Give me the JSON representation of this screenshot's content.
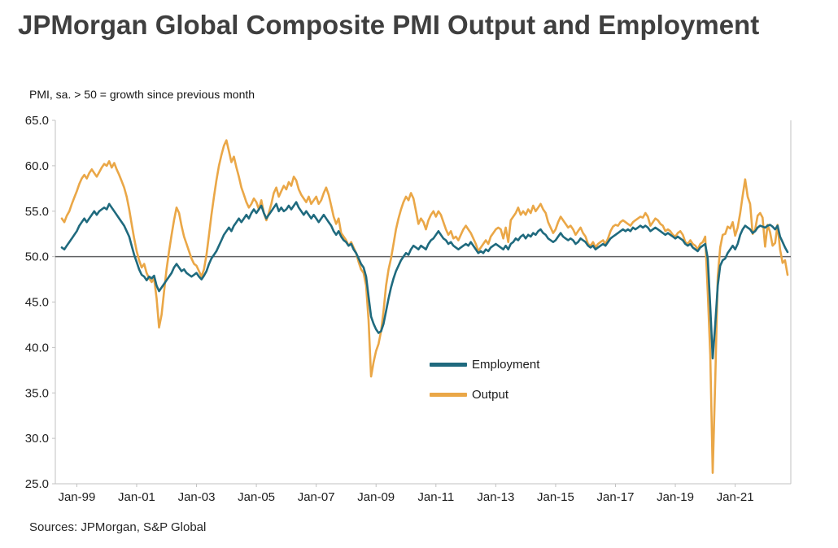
{
  "title": "JPMorgan Global Composite PMI Output and Employment",
  "axis_note": "PMI, sa. > 50 = growth since previous month",
  "source": "Sources: JPMorgan, S&P Global",
  "legend": {
    "employment": "Employment",
    "output": "Output"
  },
  "colors": {
    "employment": "#1f6a7e",
    "output": "#eaa747",
    "axis": "#c2c2c2",
    "fifty_line": "#5f6062",
    "text": "#1f1f1f"
  },
  "chart_data": {
    "type": "line",
    "title": "JPMorgan Global Composite PMI Output and Employment",
    "ylabel": "PMI, sa. > 50 = growth since previous month",
    "ylim": [
      25,
      65
    ],
    "y_ticks": [
      65,
      60,
      55,
      50,
      45,
      40,
      35,
      30,
      25
    ],
    "reference_line": 50,
    "grid": false,
    "legend_position": "inside-center",
    "x_frequency": "monthly",
    "x_start": "1998-07",
    "x_end": "2022-10",
    "x_tick_labels": [
      "Jan-99",
      "Jan-01",
      "Jan-03",
      "Jan-05",
      "Jan-07",
      "Jan-09",
      "Jan-11",
      "Jan-13",
      "Jan-15",
      "Jan-17",
      "Jan-19",
      "Jan-21"
    ],
    "x_tick_indices": [
      6,
      30,
      54,
      78,
      102,
      126,
      150,
      174,
      198,
      222,
      246,
      270
    ],
    "series": [
      {
        "name": "Employment",
        "color": "#1f6a7e",
        "values": [
          51.0,
          50.8,
          51.2,
          51.6,
          52.0,
          52.4,
          52.8,
          53.4,
          53.8,
          54.2,
          53.8,
          54.2,
          54.6,
          55.0,
          54.6,
          55.0,
          55.2,
          55.4,
          55.2,
          55.8,
          55.4,
          55.0,
          54.6,
          54.2,
          53.8,
          53.4,
          52.8,
          52.2,
          51.2,
          50.2,
          49.4,
          48.6,
          48.0,
          47.8,
          47.4,
          47.8,
          47.6,
          47.9,
          46.8,
          46.2,
          46.6,
          47.0,
          47.4,
          47.8,
          48.2,
          48.8,
          49.2,
          48.8,
          48.4,
          48.6,
          48.2,
          48.0,
          47.8,
          48.0,
          48.2,
          47.8,
          47.5,
          47.9,
          48.4,
          49.2,
          49.8,
          50.2,
          50.6,
          51.2,
          51.8,
          52.4,
          52.8,
          53.2,
          52.8,
          53.4,
          53.8,
          54.2,
          53.8,
          54.2,
          54.6,
          54.2,
          54.8,
          55.2,
          54.8,
          55.2,
          55.6,
          54.8,
          54.2,
          54.6,
          55.0,
          55.4,
          55.8,
          55.0,
          55.4,
          55.0,
          55.2,
          55.6,
          55.2,
          55.6,
          56.0,
          55.4,
          55.0,
          54.6,
          55.0,
          54.6,
          54.2,
          54.6,
          54.2,
          53.8,
          54.2,
          54.6,
          54.2,
          53.8,
          53.4,
          52.8,
          52.4,
          52.8,
          52.2,
          51.8,
          51.6,
          51.2,
          51.4,
          50.8,
          50.4,
          49.8,
          49.2,
          48.8,
          47.8,
          45.6,
          43.4,
          42.6,
          42.0,
          41.6,
          41.8,
          42.6,
          44.0,
          45.4,
          46.6,
          47.6,
          48.4,
          49.0,
          49.6,
          50.0,
          50.4,
          50.2,
          50.8,
          51.2,
          51.0,
          50.8,
          51.2,
          51.0,
          50.8,
          51.4,
          51.8,
          52.0,
          52.4,
          52.8,
          52.4,
          52.0,
          51.8,
          51.4,
          51.6,
          51.2,
          51.0,
          50.8,
          51.0,
          51.2,
          51.4,
          51.2,
          51.6,
          51.2,
          50.8,
          50.4,
          50.6,
          50.4,
          50.8,
          50.6,
          51.0,
          51.2,
          51.4,
          51.2,
          51.0,
          50.8,
          51.2,
          50.8,
          51.4,
          51.6,
          52.0,
          51.8,
          52.2,
          52.4,
          52.0,
          52.4,
          52.2,
          52.6,
          52.4,
          52.8,
          53.0,
          52.6,
          52.4,
          52.0,
          51.8,
          51.6,
          51.8,
          52.2,
          52.6,
          52.2,
          52.0,
          51.8,
          52.0,
          51.8,
          51.4,
          51.6,
          52.0,
          51.8,
          51.6,
          51.2,
          51.0,
          51.2,
          50.8,
          51.0,
          51.2,
          51.4,
          51.2,
          51.6,
          52.0,
          52.2,
          52.4,
          52.6,
          52.8,
          53.0,
          52.8,
          53.0,
          52.8,
          53.2,
          53.0,
          53.2,
          53.4,
          53.2,
          53.4,
          53.2,
          52.8,
          53.0,
          53.2,
          53.0,
          52.8,
          52.6,
          52.4,
          52.6,
          52.4,
          52.2,
          52.0,
          52.2,
          52.0,
          51.8,
          51.4,
          51.2,
          51.4,
          51.0,
          50.8,
          50.6,
          51.0,
          51.2,
          51.4,
          49.8,
          44.5,
          38.8,
          42.5,
          46.8,
          49.0,
          49.6,
          49.8,
          50.4,
          50.8,
          51.2,
          50.8,
          51.4,
          52.4,
          53.0,
          53.4,
          53.2,
          53.0,
          52.6,
          52.8,
          53.2,
          53.4,
          53.3,
          53.2,
          53.4,
          53.5,
          53.3,
          53.0,
          53.4,
          52.2,
          51.6,
          51.0,
          50.5
        ]
      },
      {
        "name": "Output",
        "color": "#eaa747",
        "values": [
          54.2,
          53.8,
          54.5,
          55.0,
          55.8,
          56.5,
          57.2,
          58.0,
          58.6,
          59.0,
          58.6,
          59.2,
          59.6,
          59.2,
          58.8,
          59.3,
          59.8,
          60.2,
          60.0,
          60.5,
          59.8,
          60.3,
          59.6,
          59.0,
          58.3,
          57.6,
          56.6,
          55.2,
          53.6,
          52.0,
          50.6,
          49.6,
          48.8,
          49.2,
          48.2,
          47.6,
          47.2,
          47.6,
          45.4,
          42.2,
          43.6,
          46.2,
          48.6,
          50.6,
          52.4,
          54.0,
          55.4,
          54.8,
          53.4,
          52.2,
          51.4,
          50.6,
          49.8,
          49.2,
          49.0,
          48.4,
          47.8,
          48.6,
          50.2,
          52.4,
          54.6,
          56.6,
          58.4,
          60.0,
          61.2,
          62.2,
          62.8,
          61.6,
          60.4,
          61.0,
          59.8,
          58.8,
          57.6,
          56.8,
          56.0,
          55.4,
          55.8,
          56.4,
          56.0,
          55.2,
          56.2,
          54.8,
          54.0,
          54.8,
          55.8,
          57.0,
          57.6,
          56.6,
          57.2,
          57.8,
          57.4,
          58.2,
          57.8,
          58.8,
          58.4,
          57.4,
          56.8,
          56.4,
          56.0,
          56.6,
          55.8,
          56.2,
          56.6,
          55.8,
          56.2,
          57.0,
          57.6,
          56.8,
          55.6,
          54.4,
          53.6,
          54.2,
          52.6,
          52.2,
          51.8,
          51.2,
          51.6,
          51.0,
          50.4,
          49.4,
          48.6,
          48.2,
          46.8,
          43.0,
          36.8,
          38.4,
          39.6,
          40.4,
          41.8,
          44.0,
          46.8,
          48.6,
          49.8,
          51.4,
          53.0,
          54.2,
          55.2,
          56.0,
          56.6,
          56.2,
          57.0,
          56.4,
          55.0,
          53.6,
          54.2,
          53.8,
          53.0,
          54.0,
          54.6,
          55.0,
          54.4,
          55.0,
          54.6,
          53.8,
          53.0,
          52.4,
          52.8,
          52.0,
          52.2,
          51.8,
          52.4,
          53.0,
          53.4,
          53.0,
          52.6,
          52.0,
          51.4,
          50.6,
          51.0,
          51.4,
          51.8,
          51.4,
          52.2,
          52.6,
          53.0,
          53.2,
          53.0,
          52.0,
          53.2,
          51.6,
          54.0,
          54.4,
          54.8,
          55.4,
          54.6,
          55.0,
          54.6,
          55.2,
          54.8,
          55.6,
          55.0,
          55.4,
          55.8,
          55.2,
          54.8,
          53.8,
          53.2,
          52.6,
          53.0,
          53.8,
          54.4,
          54.0,
          53.6,
          53.2,
          53.4,
          53.0,
          52.4,
          52.8,
          53.2,
          52.6,
          52.2,
          51.4,
          51.2,
          51.6,
          51.0,
          51.4,
          51.6,
          51.8,
          51.4,
          52.0,
          52.8,
          53.3,
          53.5,
          53.4,
          53.8,
          54.0,
          53.8,
          53.6,
          53.4,
          53.8,
          54.0,
          54.2,
          54.4,
          54.3,
          54.8,
          54.4,
          53.4,
          53.8,
          54.2,
          54.0,
          53.6,
          53.4,
          52.8,
          53.0,
          52.8,
          52.4,
          52.2,
          52.6,
          52.8,
          52.4,
          51.6,
          51.4,
          51.8,
          51.4,
          51.2,
          50.8,
          51.4,
          51.6,
          52.2,
          46.1,
          39.2,
          26.2,
          36.3,
          47.8,
          51.0,
          52.4,
          52.5,
          53.3,
          53.1,
          53.8,
          52.3,
          53.2,
          54.8,
          56.7,
          58.5,
          56.6,
          55.8,
          52.5,
          53.0,
          54.5,
          54.8,
          54.3,
          51.1,
          53.5,
          52.7,
          51.2,
          51.5,
          53.5,
          50.8,
          49.3,
          49.6,
          48.0
        ]
      }
    ]
  }
}
